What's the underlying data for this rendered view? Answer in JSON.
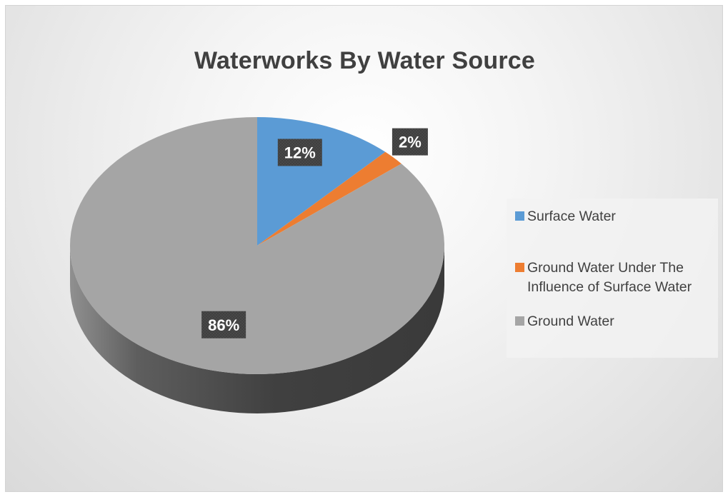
{
  "chart_data": {
    "type": "pie",
    "title": "Waterworks By Water Source",
    "categories": [
      "Surface Water",
      "Ground Water Under The Influence of Surface Water",
      "Ground Water"
    ],
    "values": [
      12,
      2,
      86
    ],
    "data_labels": [
      "12%",
      "2%",
      "86%"
    ],
    "colors": [
      "#5b9bd5",
      "#ed7d31",
      "#a5a5a5"
    ],
    "style": "3d-pie",
    "legend_position": "right"
  }
}
